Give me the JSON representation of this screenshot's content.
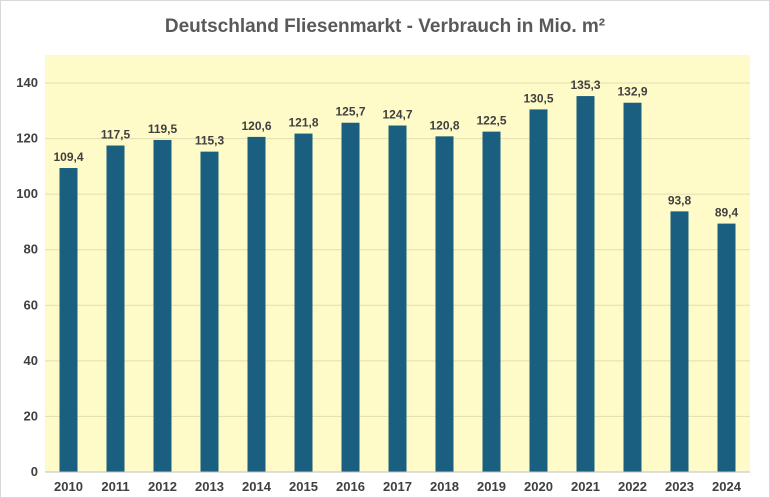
{
  "chart_data": {
    "type": "bar",
    "title": "Deutschland Fliesenmarkt - Verbrauch in Mio. m²",
    "categories": [
      "2010",
      "2011",
      "2012",
      "2013",
      "2014",
      "2015",
      "2016",
      "2017",
      "2018",
      "2019",
      "2020",
      "2021",
      "2022",
      "2023",
      "2024"
    ],
    "values": [
      109.4,
      117.5,
      119.5,
      115.3,
      120.6,
      121.8,
      125.7,
      124.7,
      120.8,
      122.5,
      130.5,
      135.3,
      132.9,
      93.8,
      89.4
    ],
    "data_labels": [
      "109,4",
      "117,5",
      "119,5",
      "115,3",
      "120,6",
      "121,8",
      "125,7",
      "124,7",
      "120,8",
      "122,5",
      "130,5",
      "135,3",
      "132,9",
      "93,8",
      "89,4"
    ],
    "ylim": [
      0,
      140
    ],
    "yticks": [
      "0",
      "20",
      "40",
      "60",
      "80",
      "100",
      "120",
      "140"
    ],
    "xlabel": "",
    "ylabel": "",
    "grid": true,
    "colors": {
      "bar": "#1a5f80",
      "plot_background": "#fffbc8",
      "gridline": "#e3ddb0",
      "title": "#595959",
      "text": "#404040"
    }
  }
}
